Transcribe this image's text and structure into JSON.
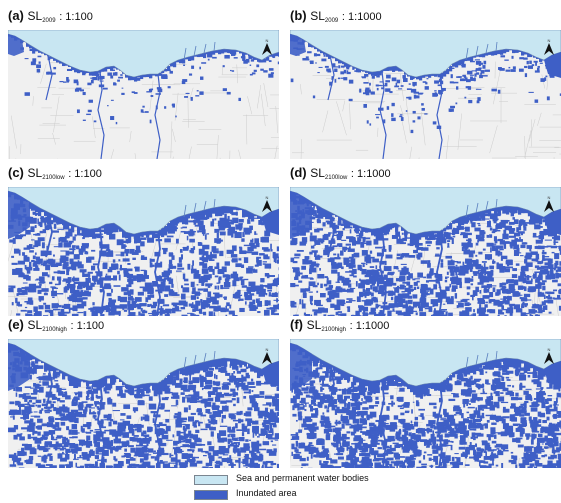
{
  "colors": {
    "sea": "#c8e6f2",
    "inundated": "#3e5fc6",
    "land": "#f0f0f0",
    "roads": "#cccccc"
  },
  "panels": [
    {
      "letter": "(a)",
      "sl": "SL",
      "sub": "2009",
      "ratio": ": 1:100",
      "scenario": "present",
      "flood_level": 1
    },
    {
      "letter": "(b)",
      "sl": "SL",
      "sub": "2009",
      "ratio": ": 1:1000",
      "scenario": "present",
      "flood_level": 2
    },
    {
      "letter": "(c)",
      "sl": "SL",
      "sub": "2100low",
      "ratio": ": 1:100",
      "scenario": "2100low",
      "flood_level": 3
    },
    {
      "letter": "(d)",
      "sl": "SL",
      "sub": "2100low",
      "ratio": ": 1:1000",
      "scenario": "2100low",
      "flood_level": 4
    },
    {
      "letter": "(e)",
      "sl": "SL",
      "sub": "2100high",
      "ratio": ": 1:100",
      "scenario": "2100high",
      "flood_level": 4
    },
    {
      "letter": "(f)",
      "sl": "SL",
      "sub": "2100high",
      "ratio": ": 1:1000",
      "scenario": "2100high",
      "flood_level": 5
    }
  ],
  "north_label": "N",
  "legend": {
    "items": [
      {
        "label": "Sea and permanent water bodies",
        "color": "#c8e6f2"
      },
      {
        "label": "Inundated area",
        "color": "#3e5fc6"
      }
    ]
  }
}
